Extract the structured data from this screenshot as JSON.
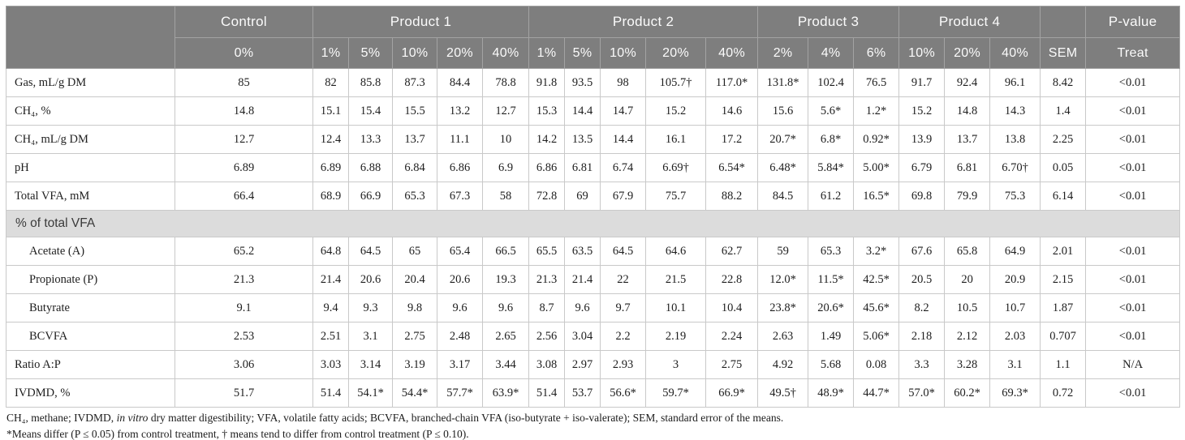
{
  "colors": {
    "header_bg": "#7e7e7e",
    "header_text": "#fbfbfb",
    "section_bg": "#dcdcdc",
    "body_border": "#c9c9c9"
  },
  "table": {
    "header": {
      "groups": [
        {
          "label": "Control",
          "subs": [
            "0%"
          ]
        },
        {
          "label": "Product 1",
          "subs": [
            "1%",
            "5%",
            "10%",
            "20%",
            "40%"
          ]
        },
        {
          "label": "Product 2",
          "subs": [
            "1%",
            "5%",
            "10%",
            "20%",
            "40%"
          ]
        },
        {
          "label": "Product 3",
          "subs": [
            "2%",
            "4%",
            "6%"
          ]
        },
        {
          "label": "Product 4",
          "subs": [
            "10%",
            "20%",
            "40%"
          ]
        },
        {
          "label": "",
          "subs": [
            "SEM"
          ]
        },
        {
          "label": "P-value",
          "subs": [
            "Treat"
          ]
        }
      ]
    },
    "rows": [
      {
        "type": "data",
        "label": "Gas, mL/g DM",
        "indent": false,
        "cells": [
          "85",
          "82",
          "85.8",
          "87.3",
          "84.4",
          "78.8",
          "91.8",
          "93.5",
          "98",
          "105.7†",
          "117.0*",
          "131.8*",
          "102.4",
          "76.5",
          "91.7",
          "92.4",
          "96.1",
          "8.42",
          "<0.01"
        ]
      },
      {
        "type": "data",
        "label": "CH₄, %",
        "indent": false,
        "cells": [
          "14.8",
          "15.1",
          "15.4",
          "15.5",
          "13.2",
          "12.7",
          "15.3",
          "14.4",
          "14.7",
          "15.2",
          "14.6",
          "15.6",
          "5.6*",
          "1.2*",
          "15.2",
          "14.8",
          "14.3",
          "1.4",
          "<0.01"
        ]
      },
      {
        "type": "data",
        "label": "CH₄, mL/g DM",
        "indent": false,
        "cells": [
          "12.7",
          "12.4",
          "13.3",
          "13.7",
          "11.1",
          "10",
          "14.2",
          "13.5",
          "14.4",
          "16.1",
          "17.2",
          "20.7*",
          "6.8*",
          "0.92*",
          "13.9",
          "13.7",
          "13.8",
          "2.25",
          "<0.01"
        ]
      },
      {
        "type": "data",
        "label": "pH",
        "indent": false,
        "cells": [
          "6.89",
          "6.89",
          "6.88",
          "6.84",
          "6.86",
          "6.9",
          "6.86",
          "6.81",
          "6.74",
          "6.69†",
          "6.54*",
          "6.48*",
          "5.84*",
          "5.00*",
          "6.79",
          "6.81",
          "6.70†",
          "0.05",
          "<0.01"
        ]
      },
      {
        "type": "data",
        "label": "Total VFA, mM",
        "indent": false,
        "cells": [
          "66.4",
          "68.9",
          "66.9",
          "65.3",
          "67.3",
          "58",
          "72.8",
          "69",
          "67.9",
          "75.7",
          "88.2",
          "84.5",
          "61.2",
          "16.5*",
          "69.8",
          "79.9",
          "75.3",
          "6.14",
          "<0.01"
        ]
      },
      {
        "type": "section",
        "label": "% of total VFA"
      },
      {
        "type": "data",
        "label": "Acetate (A)",
        "indent": true,
        "cells": [
          "65.2",
          "64.8",
          "64.5",
          "65",
          "65.4",
          "66.5",
          "65.5",
          "63.5",
          "64.5",
          "64.6",
          "62.7",
          "59",
          "65.3",
          "3.2*",
          "67.6",
          "65.8",
          "64.9",
          "2.01",
          "<0.01"
        ]
      },
      {
        "type": "data",
        "label": "Propionate (P)",
        "indent": true,
        "cells": [
          "21.3",
          "21.4",
          "20.6",
          "20.4",
          "20.6",
          "19.3",
          "21.3",
          "21.4",
          "22",
          "21.5",
          "22.8",
          "12.0*",
          "11.5*",
          "42.5*",
          "20.5",
          "20",
          "20.9",
          "2.15",
          "<0.01"
        ]
      },
      {
        "type": "data",
        "label": "Butyrate",
        "indent": true,
        "cells": [
          "9.1",
          "9.4",
          "9.3",
          "9.8",
          "9.6",
          "9.6",
          "8.7",
          "9.6",
          "9.7",
          "10.1",
          "10.4",
          "23.8*",
          "20.6*",
          "45.6*",
          "8.2",
          "10.5",
          "10.7",
          "1.87",
          "<0.01"
        ]
      },
      {
        "type": "data",
        "label": "BCVFA",
        "indent": true,
        "cells": [
          "2.53",
          "2.51",
          "3.1",
          "2.75",
          "2.48",
          "2.65",
          "2.56",
          "3.04",
          "2.2",
          "2.19",
          "2.24",
          "2.63",
          "1.49",
          "5.06*",
          "2.18",
          "2.12",
          "2.03",
          "0.707",
          "<0.01"
        ]
      },
      {
        "type": "data",
        "label": "Ratio A:P",
        "indent": false,
        "cells": [
          "3.06",
          "3.03",
          "3.14",
          "3.19",
          "3.17",
          "3.44",
          "3.08",
          "2.97",
          "2.93",
          "3",
          "2.75",
          "4.92",
          "5.68",
          "0.08",
          "3.3",
          "3.28",
          "3.1",
          "1.1",
          "N/A"
        ]
      },
      {
        "type": "data",
        "label": "IVDMD, %",
        "indent": false,
        "cells": [
          "51.7",
          "51.4",
          "54.1*",
          "54.4*",
          "57.7*",
          "63.9*",
          "51.4",
          "53.7",
          "56.6*",
          "59.7*",
          "66.9*",
          "49.5†",
          "48.9*",
          "44.7*",
          "57.0*",
          "60.2*",
          "69.3*",
          "0.72",
          "<0.01"
        ]
      }
    ]
  },
  "footnotes": {
    "abbr_pre": "CH₄, methane; IVDMD, ",
    "abbr_italic": "in vitro",
    "abbr_post": " dry matter digestibility; VFA, volatile fatty acids; BCVFA, branched-chain VFA (iso-butyrate + iso-valerate); SEM, standard error of the means.",
    "significance": "*Means differ (P ≤ 0.05) from control treatment, † means tend to differ from control treatment (P ≤ 0.10)."
  }
}
